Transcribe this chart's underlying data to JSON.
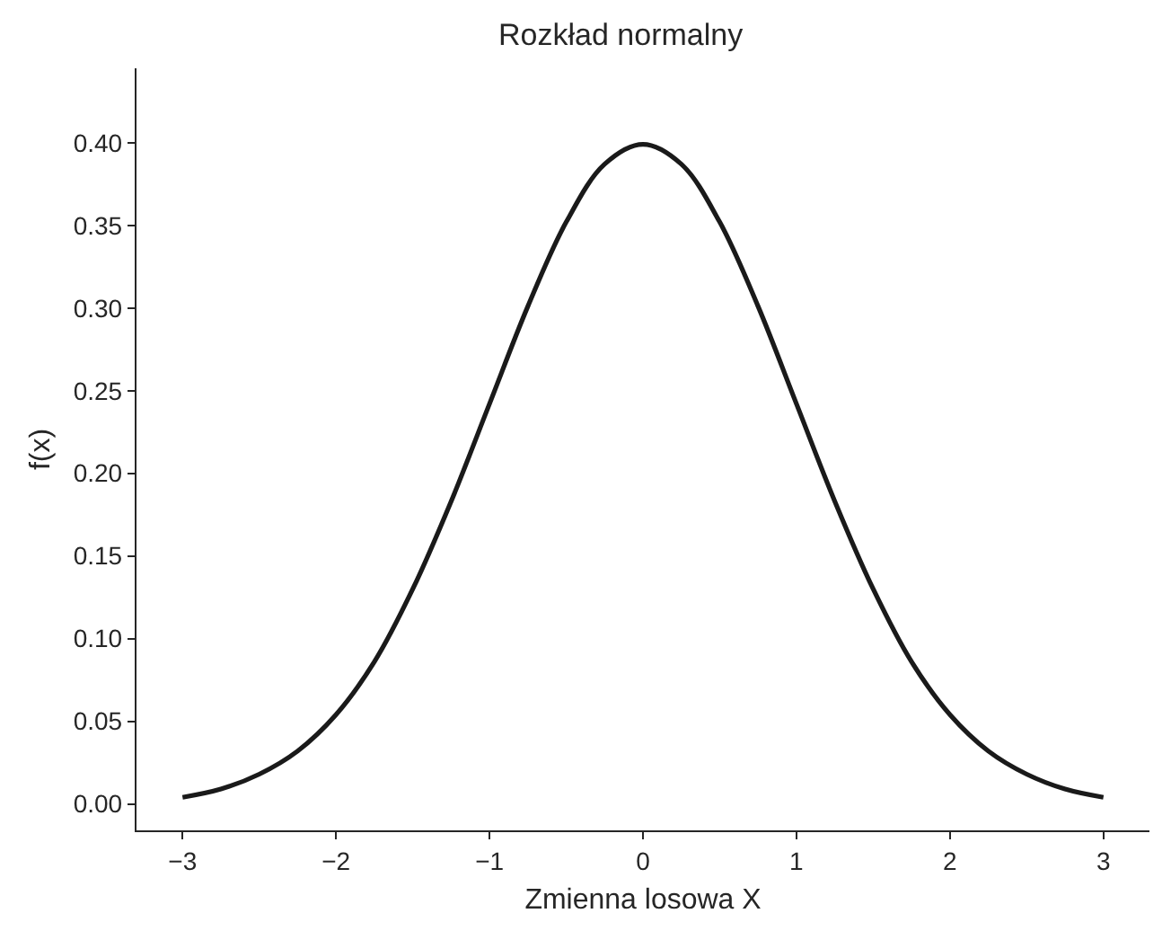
{
  "chart_data": {
    "type": "line",
    "title": "Rozkład normalny",
    "xlabel": "Zmienna losowa X",
    "ylabel": "f(x)",
    "x": [
      -3,
      -2.75,
      -2.5,
      -2.25,
      -2,
      -1.75,
      -1.5,
      -1.25,
      -1,
      -0.75,
      -0.5,
      -0.25,
      0,
      0.25,
      0.5,
      0.75,
      1,
      1.25,
      1.5,
      1.75,
      2,
      2.25,
      2.5,
      2.75,
      3
    ],
    "series": [
      {
        "color": "#1a1a1a",
        "values": [
          0.004,
          0.009,
          0.018,
          0.032,
          0.054,
          0.086,
          0.13,
          0.183,
          0.242,
          0.301,
          0.352,
          0.387,
          0.399,
          0.387,
          0.352,
          0.301,
          0.242,
          0.183,
          0.13,
          0.086,
          0.054,
          0.032,
          0.018,
          0.009,
          0.004
        ]
      }
    ],
    "xlim": [
      -3.3,
      3.3
    ],
    "ylim": [
      -0.016,
      0.445
    ],
    "xticks": [
      {
        "value": -3,
        "label": "−3"
      },
      {
        "value": -2,
        "label": "−2"
      },
      {
        "value": -1,
        "label": "−1"
      },
      0,
      1,
      2,
      3
    ],
    "yticks": [
      {
        "value": 0,
        "label": "0.00"
      },
      {
        "value": 0.05,
        "label": "0.05"
      },
      {
        "value": 0.1,
        "label": "0.10"
      },
      {
        "value": 0.15,
        "label": "0.15"
      },
      {
        "value": 0.2,
        "label": "0.20"
      },
      {
        "value": 0.25,
        "label": "0.25"
      },
      {
        "value": 0.3,
        "label": "0.30"
      },
      {
        "value": 0.35,
        "label": "0.35"
      },
      {
        "value": 0.4,
        "label": "0.40"
      }
    ],
    "grid": false,
    "marker": "none",
    "line_style": "solid"
  }
}
